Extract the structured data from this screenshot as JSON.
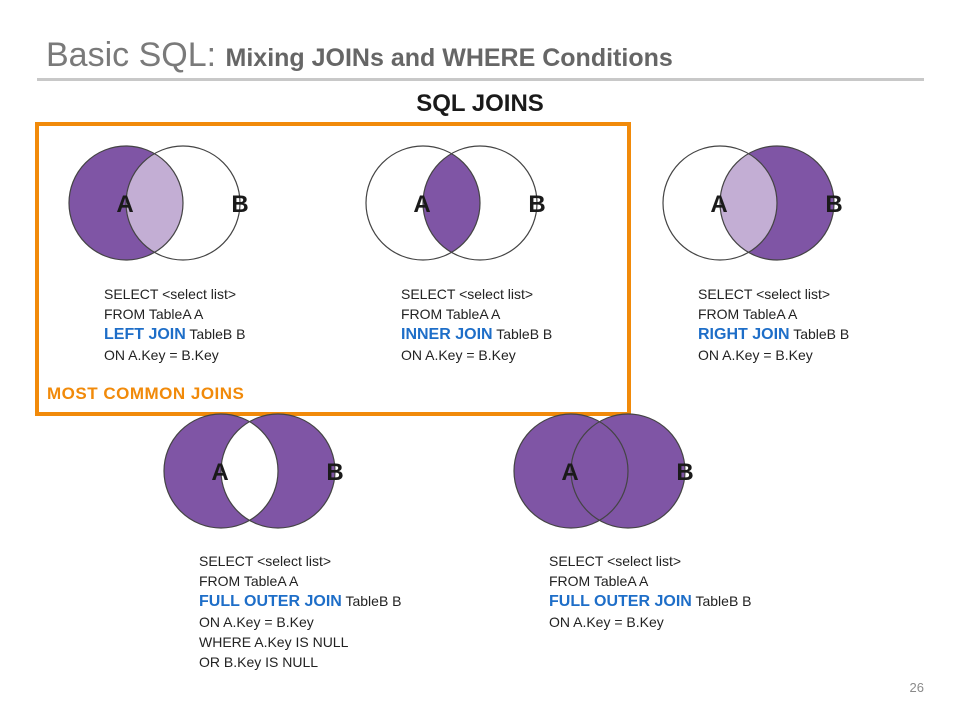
{
  "slide": {
    "title_main": "Basic SQL:",
    "title_sub": "Mixing JOINs and WHERE Conditions",
    "heading": "SQL JOINS",
    "highlight_label": "MOST COMMON  JOINS",
    "page_number": "26"
  },
  "colors": {
    "purple": "#7f55a5",
    "light_purple": "#c3aed4",
    "orange": "#f18a0a",
    "keyword_blue": "#1e6ec8"
  },
  "diagrams": [
    {
      "id": "left-join",
      "label_a": "A",
      "label_b": "B",
      "shading": "left",
      "sql": {
        "line1": "SELECT <select list>",
        "line2": "FROM TableA A",
        "keyword": "LEFT JOIN",
        "line3_rest": "TableB B",
        "line4": "ON A.Key = B.Key"
      }
    },
    {
      "id": "inner-join",
      "label_a": "A",
      "label_b": "B",
      "shading": "inner",
      "sql": {
        "line1": "SELECT <select list>",
        "line2": "FROM TableA A",
        "keyword": "INNER JOIN",
        "line3_rest": "TableB B",
        "line4": "ON A.Key = B.Key"
      }
    },
    {
      "id": "right-join",
      "label_a": "A",
      "label_b": "B",
      "shading": "right",
      "sql": {
        "line1": "SELECT <select list>",
        "line2": "FROM TableA A",
        "keyword": "RIGHT JOIN",
        "line3_rest": "TableB B",
        "line4": "ON A.Key = B.Key"
      }
    },
    {
      "id": "full-outer-exclusive",
      "label_a": "A",
      "label_b": "B",
      "shading": "outer-excluding",
      "sql": {
        "line1": "SELECT <select list>",
        "line2": "FROM TableA A",
        "keyword": "FULL OUTER JOIN",
        "line3_rest": "TableB B",
        "line4": "ON A.Key = B.Key",
        "line5": "WHERE A.Key IS NULL",
        "line6": "OR B.Key IS NULL"
      }
    },
    {
      "id": "full-outer",
      "label_a": "A",
      "label_b": "B",
      "shading": "full",
      "sql": {
        "line1": "SELECT <select list>",
        "line2": "FROM TableA A",
        "keyword": "FULL OUTER JOIN",
        "line3_rest": "TableB B",
        "line4": "ON A.Key = B.Key"
      }
    }
  ]
}
